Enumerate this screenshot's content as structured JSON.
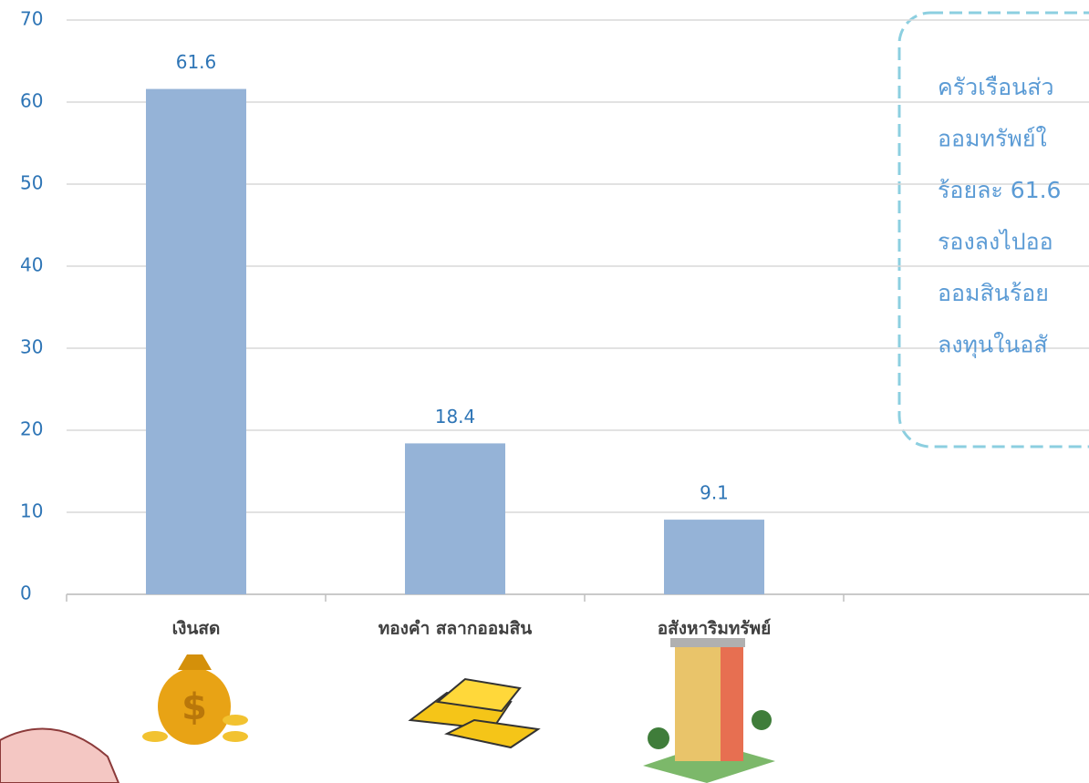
{
  "chart_data": {
    "type": "bar",
    "categories": [
      "เงินสด",
      "ทองคำ สลากออมสิน",
      "อสังหาริมทรัพย์"
    ],
    "values": [
      61.6,
      18.4,
      9.1
    ],
    "color": "#95b3d7",
    "ylim": [
      0,
      70
    ],
    "yticks": [
      0,
      10,
      20,
      30,
      40,
      50,
      60,
      70
    ],
    "grid": true,
    "annotation": [
      "ครัวเรือนส่ว",
      "ออมทรัพย์ใ",
      "ร้อยละ 61.6",
      "รองลงไปออ",
      "ออมสินร้อย",
      "ลงทุนในอสั"
    ]
  }
}
